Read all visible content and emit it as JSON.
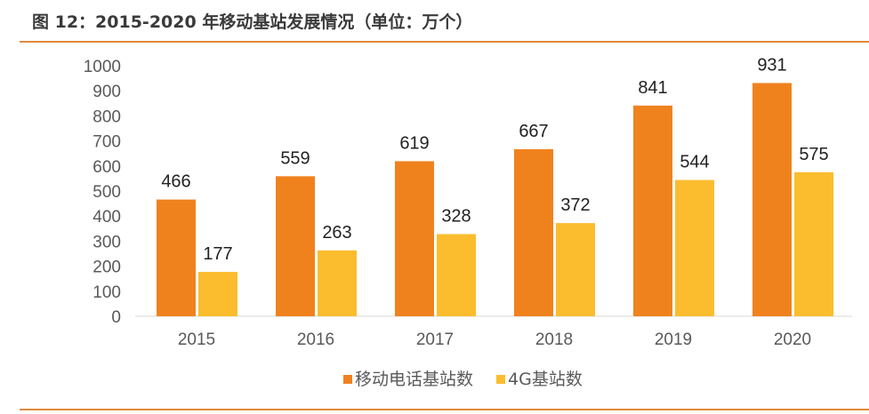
{
  "title": "图 12：2015-2020 年移动基站发展情况（单位：万个）",
  "chart_data": {
    "type": "bar",
    "categories": [
      "2015",
      "2016",
      "2017",
      "2018",
      "2019",
      "2020"
    ],
    "series": [
      {
        "name": "移动电话基站数",
        "values": [
          466,
          559,
          619,
          667,
          841,
          931
        ],
        "color": "#F0821E"
      },
      {
        "name": "4G基站数",
        "values": [
          177,
          263,
          328,
          372,
          544,
          575
        ],
        "color": "#FBBD2E"
      }
    ],
    "ylim": [
      0,
      1000
    ],
    "yticks": [
      0,
      100,
      200,
      300,
      400,
      500,
      600,
      700,
      800,
      900,
      1000
    ],
    "grid": false,
    "data_labels": true,
    "legend": "bottom"
  }
}
